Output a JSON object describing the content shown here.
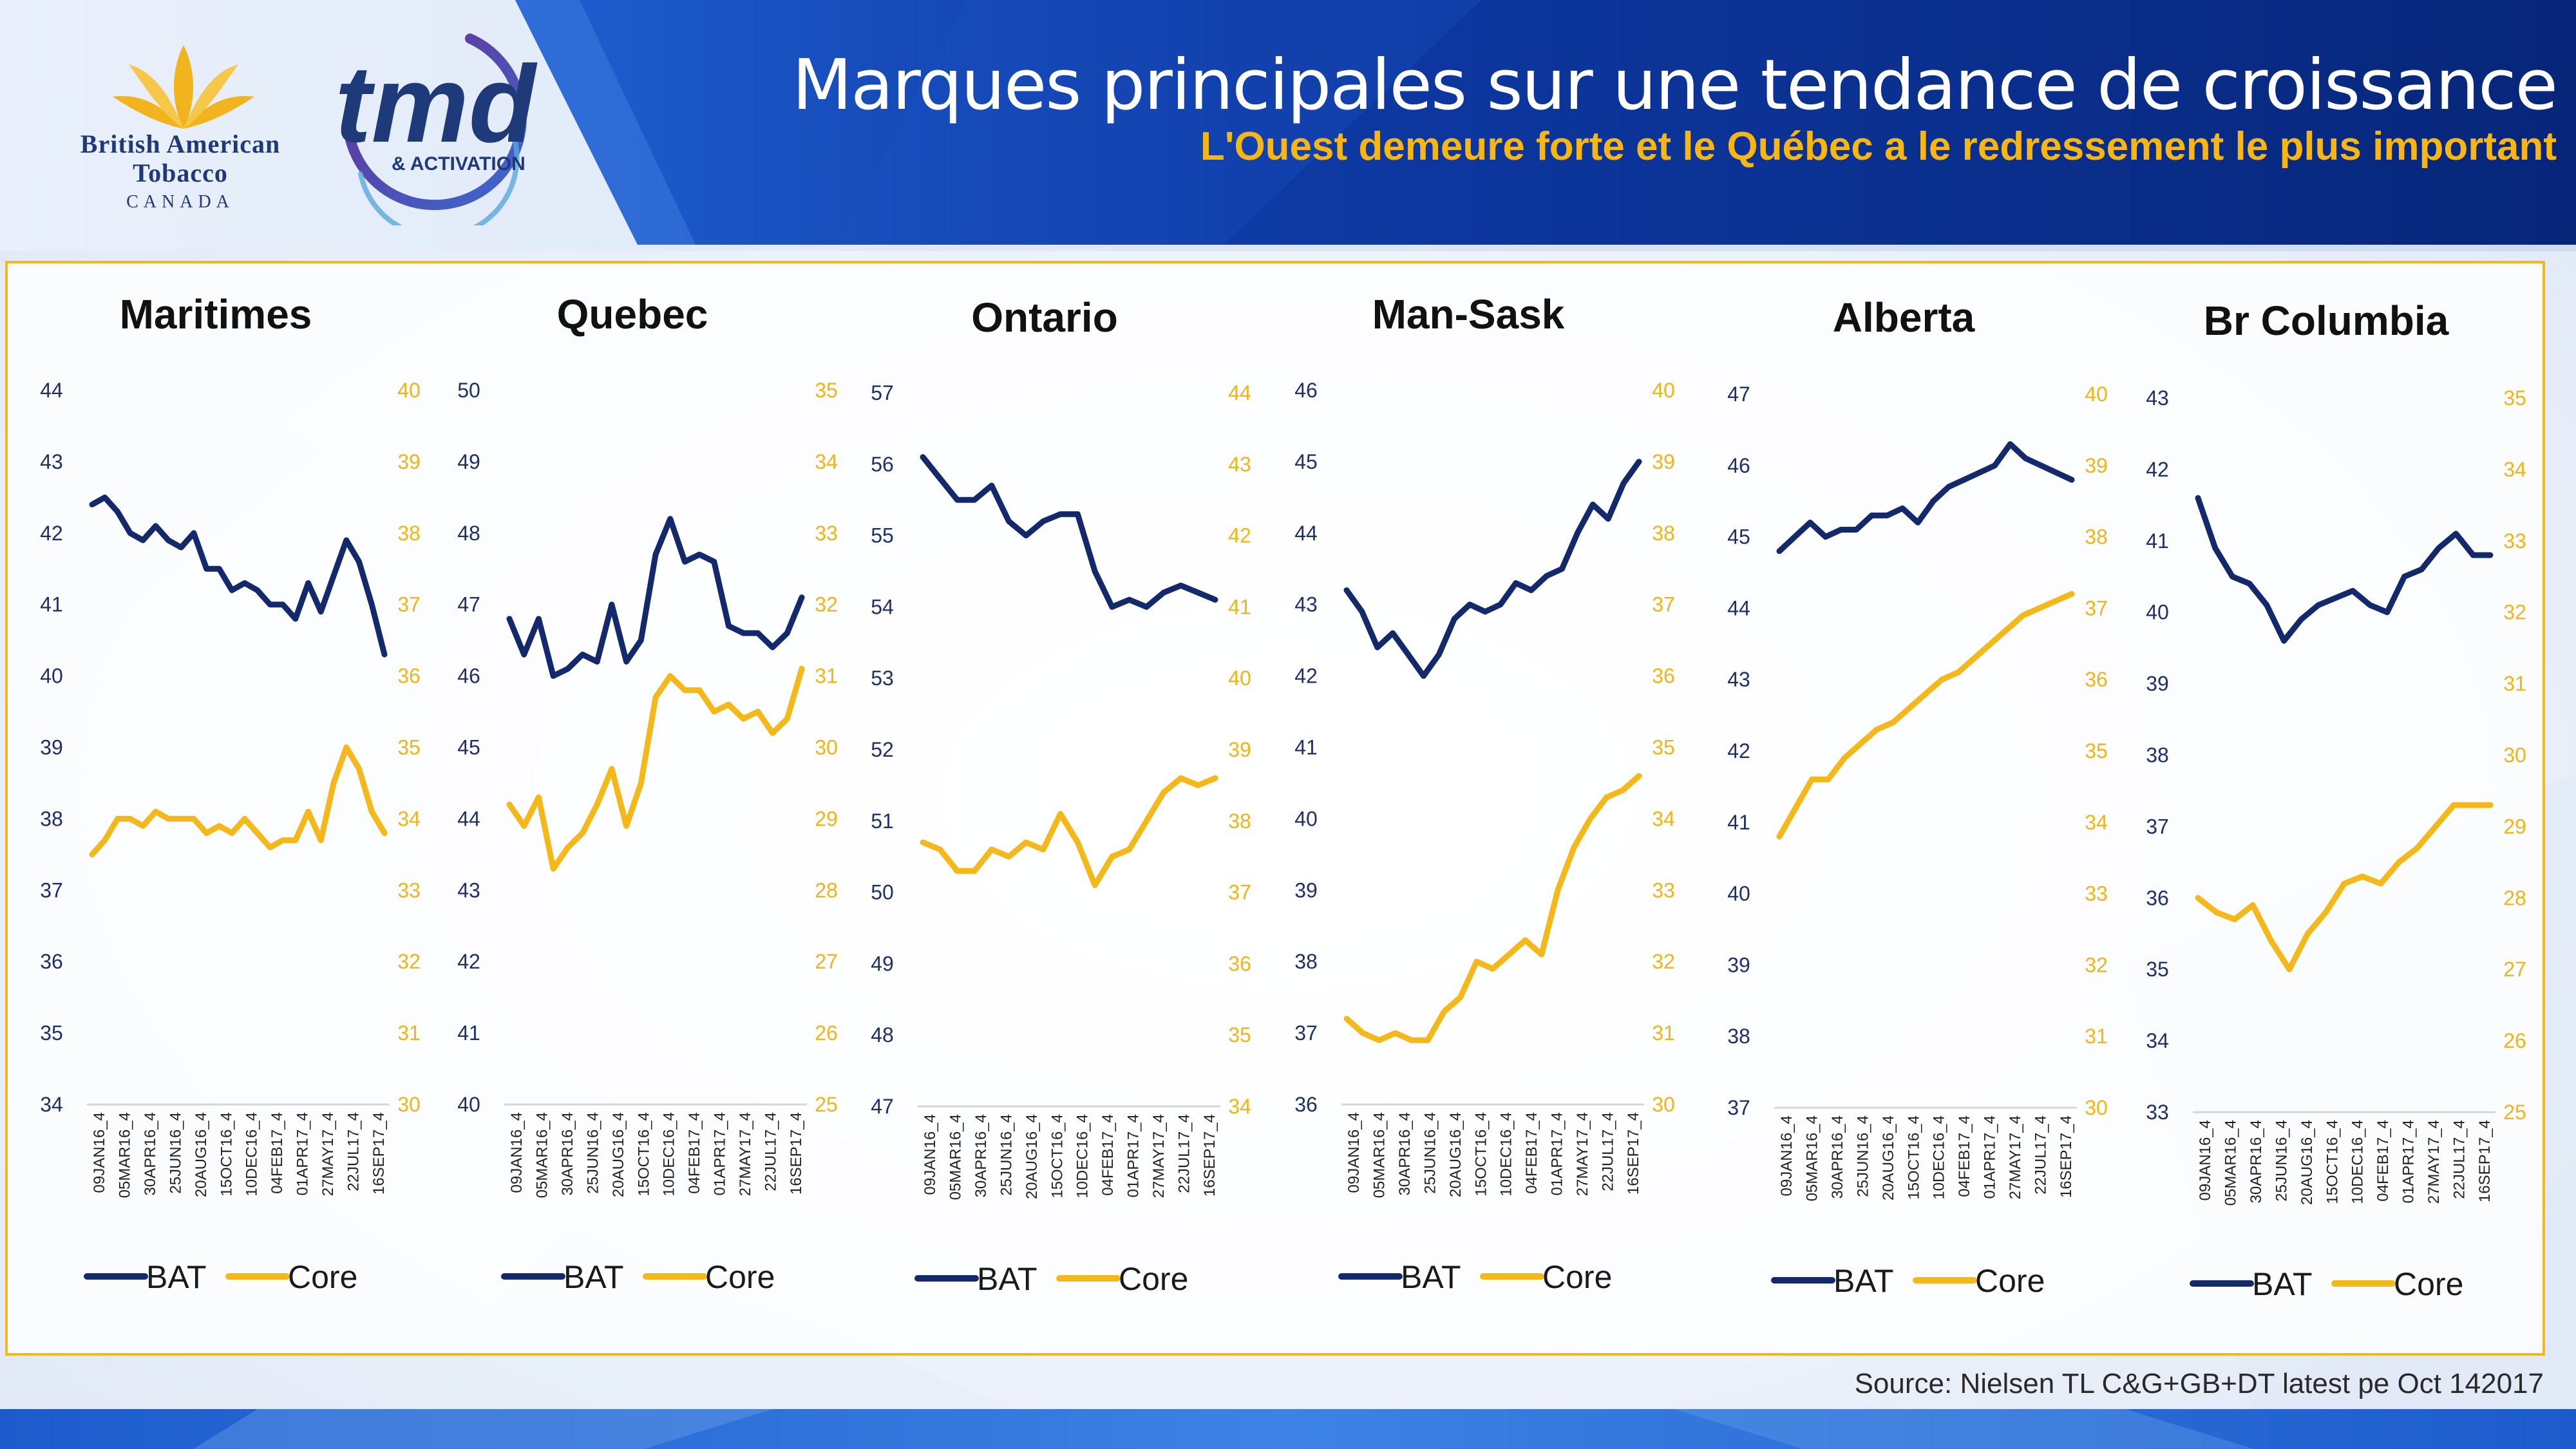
{
  "header": {
    "title": "Marques principales sur une tendance de croissance",
    "subtitle": "L'Ouest demeure forte et le Québec a le redressement le plus important"
  },
  "logos": {
    "bat": {
      "line1": "British American",
      "line2": "Tobacco",
      "line3": "CANADA"
    },
    "tmd": {
      "mark": "tmd",
      "sub": "& ACTIVATION"
    }
  },
  "colors": {
    "bat_series": "#13296b",
    "core_series": "#f5b81a",
    "header_blue": "#0b2f8c",
    "frame_border": "#f4b71c",
    "subtitle": "#f7b614"
  },
  "source": "Source: Nielsen TL C&G+GB+DT latest pe Oct 142017",
  "chart_data": [
    {
      "type": "line",
      "title": "Maritimes",
      "x_labels": [
        "09JAN16_4",
        "05MAR16_4",
        "30APR16_4",
        "25JUN16_4",
        "20AUG16_4",
        "15OCT16_4",
        "10DEC16_4",
        "04FEB17_4",
        "01APR17_4",
        "27MAY17_4",
        "22JUL17_4",
        "16SEP17_4"
      ],
      "y_left": {
        "min": 34,
        "max": 44,
        "ticks": [
          44,
          43,
          42,
          41,
          40,
          39,
          38,
          37,
          36,
          35,
          34
        ]
      },
      "y_right": {
        "min": 30,
        "max": 40,
        "ticks": [
          40,
          39,
          38,
          37,
          36,
          35,
          34,
          33,
          32,
          31,
          30
        ]
      },
      "series": [
        {
          "name": "BAT",
          "axis": "left",
          "values": [
            42.4,
            42.5,
            42.3,
            42.0,
            41.9,
            42.1,
            41.9,
            41.8,
            42.0,
            41.5,
            41.5,
            41.2,
            41.3,
            41.2,
            41.0,
            41.0,
            40.8,
            41.3,
            40.9,
            41.4,
            41.9,
            41.6,
            41.0,
            40.3
          ]
        },
        {
          "name": "Core",
          "axis": "right",
          "values": [
            33.5,
            33.7,
            34.0,
            34.0,
            33.9,
            34.1,
            34.0,
            34.0,
            34.0,
            33.8,
            33.9,
            33.8,
            34.0,
            33.8,
            33.6,
            33.7,
            33.7,
            34.1,
            33.7,
            34.5,
            35.0,
            34.7,
            34.1,
            33.8
          ]
        }
      ],
      "legend": [
        "BAT",
        "Core"
      ]
    },
    {
      "type": "line",
      "title": "Quebec",
      "x_labels": [
        "09JAN16_4",
        "05MAR16_4",
        "30APR16_4",
        "25JUN16_4",
        "20AUG16_4",
        "15OCT16_4",
        "10DEC16_4",
        "04FEB17_4",
        "01APR17_4",
        "27MAY17_4",
        "22JUL17_4",
        "16SEP17_4"
      ],
      "y_left": {
        "min": 40,
        "max": 50,
        "ticks": [
          50,
          49,
          48,
          47,
          46,
          45,
          44,
          43,
          42,
          41,
          40
        ]
      },
      "y_right": {
        "min": 25,
        "max": 35,
        "ticks": [
          35,
          34,
          33,
          32,
          31,
          30,
          29,
          28,
          27,
          26,
          25
        ]
      },
      "series": [
        {
          "name": "BAT",
          "axis": "left",
          "values": [
            46.8,
            46.3,
            46.8,
            46.0,
            46.1,
            46.3,
            46.2,
            47.0,
            46.2,
            46.5,
            47.7,
            48.2,
            47.6,
            47.7,
            47.6,
            46.7,
            46.6,
            46.6,
            46.4,
            46.6,
            47.1
          ]
        },
        {
          "name": "Core",
          "axis": "right",
          "values": [
            29.2,
            28.9,
            29.3,
            28.3,
            28.6,
            28.8,
            29.2,
            29.7,
            28.9,
            29.5,
            30.7,
            31.0,
            30.8,
            30.8,
            30.5,
            30.6,
            30.4,
            30.5,
            30.2,
            30.4,
            31.1
          ]
        }
      ],
      "legend": [
        "BAT",
        "Core"
      ]
    },
    {
      "type": "line",
      "title": "Ontario",
      "x_labels": [
        "09JAN16_4",
        "05MAR16_4",
        "30APR16_4",
        "25JUN16_4",
        "20AUG16_4",
        "15OCT16_4",
        "10DEC16_4",
        "04FEB17_4",
        "01APR17_4",
        "27MAY17_4",
        "22JUL17_4",
        "16SEP17_4"
      ],
      "y_left": {
        "min": 47,
        "max": 57,
        "ticks": [
          57,
          56,
          55,
          54,
          53,
          52,
          51,
          50,
          49,
          48,
          47
        ]
      },
      "y_right": {
        "min": 34,
        "max": 44,
        "ticks": [
          44,
          43,
          42,
          41,
          40,
          39,
          38,
          37,
          36,
          35,
          34
        ]
      },
      "series": [
        {
          "name": "BAT",
          "axis": "left",
          "values": [
            56.1,
            55.8,
            55.5,
            55.5,
            55.7,
            55.2,
            55.0,
            55.2,
            55.3,
            55.3,
            54.5,
            54.0,
            54.1,
            54.0,
            54.2,
            54.3,
            54.2,
            54.1
          ]
        },
        {
          "name": "Core",
          "axis": "right",
          "values": [
            37.7,
            37.6,
            37.3,
            37.3,
            37.6,
            37.5,
            37.7,
            37.6,
            38.1,
            37.7,
            37.1,
            37.5,
            37.6,
            38.0,
            38.4,
            38.6,
            38.5,
            38.6
          ]
        }
      ],
      "legend": [
        "BAT",
        "Core"
      ]
    },
    {
      "type": "line",
      "title": "Man-Sask",
      "x_labels": [
        "09JAN16_4",
        "05MAR16_4",
        "30APR16_4",
        "25JUN16_4",
        "20AUG16_4",
        "15OCT16_4",
        "10DEC16_4",
        "04FEB17_4",
        "01APR17_4",
        "27MAY17_4",
        "22JUL17_4",
        "16SEP17_4"
      ],
      "y_left": {
        "min": 36,
        "max": 46,
        "ticks": [
          46,
          45,
          44,
          43,
          42,
          41,
          40,
          39,
          38,
          37,
          36
        ]
      },
      "y_right": {
        "min": 30,
        "max": 40,
        "ticks": [
          40,
          39,
          38,
          37,
          36,
          35,
          34,
          33,
          32,
          31,
          30
        ]
      },
      "series": [
        {
          "name": "BAT",
          "axis": "left",
          "values": [
            43.2,
            42.9,
            42.4,
            42.6,
            42.3,
            42.0,
            42.3,
            42.8,
            43.0,
            42.9,
            43.0,
            43.3,
            43.2,
            43.4,
            43.5,
            44.0,
            44.4,
            44.2,
            44.7,
            45.0
          ]
        },
        {
          "name": "Core",
          "axis": "right",
          "values": [
            31.2,
            31.0,
            30.9,
            31.0,
            30.9,
            30.9,
            31.3,
            31.5,
            32.0,
            31.9,
            32.1,
            32.3,
            32.1,
            33.0,
            33.6,
            34.0,
            34.3,
            34.4,
            34.6
          ]
        }
      ],
      "legend": [
        "BAT",
        "Core"
      ]
    },
    {
      "type": "line",
      "title": "Alberta",
      "x_labels": [
        "09JAN16_4",
        "05MAR16_4",
        "30APR16_4",
        "25JUN16_4",
        "20AUG16_4",
        "15OCT16_4",
        "10DEC16_4",
        "04FEB17_4",
        "01APR17_4",
        "27MAY17_4",
        "22JUL17_4",
        "16SEP17_4"
      ],
      "y_left": {
        "min": 37,
        "max": 47,
        "ticks": [
          47,
          46,
          45,
          44,
          43,
          42,
          41,
          40,
          39,
          38,
          37
        ]
      },
      "y_right": {
        "min": 30,
        "max": 40,
        "ticks": [
          40,
          39,
          38,
          37,
          36,
          35,
          34,
          33,
          32,
          31,
          30
        ]
      },
      "series": [
        {
          "name": "BAT",
          "axis": "left",
          "values": [
            44.8,
            45.0,
            45.2,
            45.0,
            45.1,
            45.1,
            45.3,
            45.3,
            45.4,
            45.2,
            45.5,
            45.7,
            45.8,
            45.9,
            46.0,
            46.3,
            46.1,
            46.0,
            45.9,
            45.8
          ]
        },
        {
          "name": "Core",
          "axis": "right",
          "values": [
            33.8,
            34.2,
            34.6,
            34.6,
            34.9,
            35.1,
            35.3,
            35.4,
            35.6,
            35.8,
            36.0,
            36.1,
            36.3,
            36.5,
            36.7,
            36.9,
            37.0,
            37.1,
            37.2
          ]
        }
      ],
      "legend": [
        "BAT",
        "Core"
      ]
    },
    {
      "type": "line",
      "title": "Br Columbia",
      "x_labels": [
        "09JAN16_4",
        "05MAR16_4",
        "30APR16_4",
        "25JUN16_4",
        "20AUG16_4",
        "15OCT16_4",
        "10DEC16_4",
        "04FEB17_4",
        "01APR17_4",
        "27MAY17_4",
        "22JUL17_4",
        "16SEP17_4"
      ],
      "y_left": {
        "min": 33,
        "max": 43,
        "ticks": [
          43,
          42,
          41,
          40,
          39,
          38,
          37,
          36,
          35,
          34,
          33
        ]
      },
      "y_right": {
        "min": 25,
        "max": 35,
        "ticks": [
          35,
          34,
          33,
          32,
          31,
          30,
          29,
          28,
          27,
          26,
          25
        ]
      },
      "series": [
        {
          "name": "BAT",
          "axis": "left",
          "values": [
            41.6,
            40.9,
            40.5,
            40.4,
            40.1,
            39.6,
            39.9,
            40.1,
            40.2,
            40.3,
            40.1,
            40.0,
            40.5,
            40.6,
            40.9,
            41.1,
            40.8,
            40.8
          ]
        },
        {
          "name": "Core",
          "axis": "right",
          "values": [
            28.0,
            27.8,
            27.7,
            27.9,
            27.4,
            27.0,
            27.5,
            27.8,
            28.2,
            28.3,
            28.2,
            28.5,
            28.7,
            29.0,
            29.3,
            29.3,
            29.3
          ]
        }
      ],
      "legend": [
        "BAT",
        "Core"
      ]
    }
  ]
}
